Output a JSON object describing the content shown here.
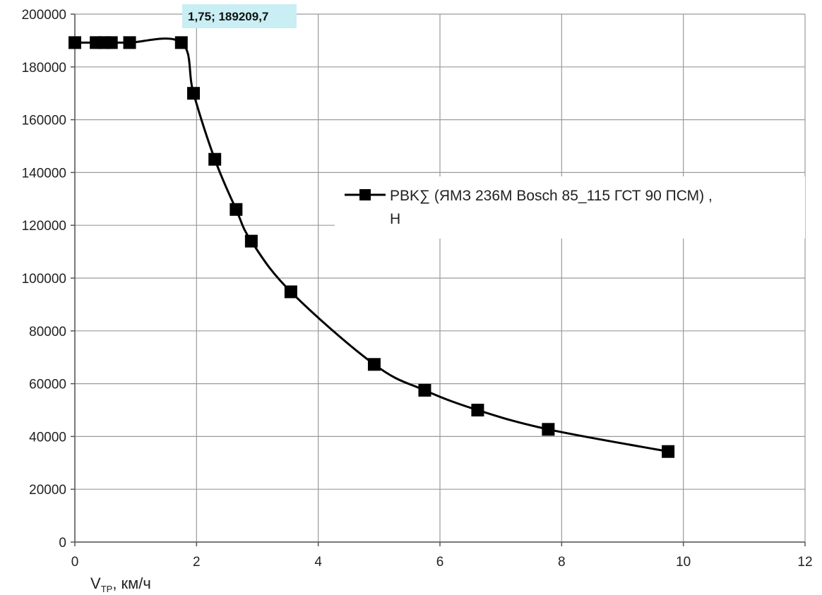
{
  "chart_data": {
    "type": "line",
    "title": "",
    "xlabel": "V",
    "xlabel_sub": "ТР",
    "xlabel_rest": ", км/ч",
    "ylabel": "",
    "xlim": [
      0,
      12
    ],
    "ylim": [
      0,
      200000
    ],
    "x_ticks": [
      0,
      2,
      4,
      6,
      8,
      10,
      12
    ],
    "y_ticks": [
      0,
      20000,
      40000,
      60000,
      80000,
      100000,
      120000,
      140000,
      160000,
      180000,
      200000
    ],
    "grid": true,
    "legend_position": "right",
    "series": [
      {
        "name": "PBK∑ (ЯМЗ 236М Bosch 85_115 ГСТ 90 ПСМ) , Н",
        "color": "#000000",
        "marker": "square",
        "x": [
          0,
          0.35,
          0.48,
          0.6,
          0.9,
          1.75,
          1.95,
          2.3,
          2.65,
          2.9,
          3.55,
          4.92,
          5.75,
          6.62,
          7.78,
          9.75
        ],
        "y": [
          189209.7,
          189209.7,
          189209.7,
          189209.7,
          189209.7,
          189209.7,
          170000,
          145000,
          126000,
          114000,
          94800,
          67300,
          57500,
          50000,
          42700,
          34300
        ]
      }
    ],
    "annotation": {
      "text": "1,75; 189209,7",
      "x": 1.75,
      "y": 189209.7,
      "background": "#c9eef3"
    }
  }
}
